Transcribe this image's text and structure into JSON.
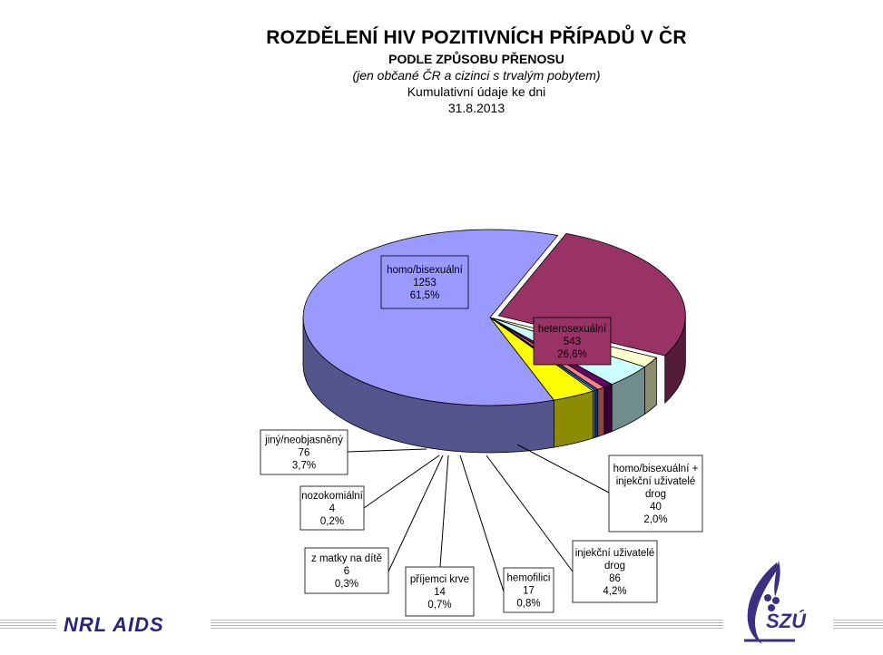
{
  "titles": {
    "main": "ROZDĚLENÍ HIV POZITIVNÍCH PŘÍPADŮ V ČR",
    "sub": "PODLE ZPŮSOBU PŘENOSU",
    "note": "(jen občané ČR a cizinci s trvalým pobytem)",
    "cumulative": "Kumulativní údaje ke dni",
    "date": "31.8.2013"
  },
  "chart_data": {
    "type": "pie",
    "title": "ROZDĚLENÍ HIV POZITIVNÍCH PŘÍPADŮ V ČR",
    "categories": [
      "homo/bisexuální",
      "heterosexuální",
      "homo/bisexuální + injekční uživatelé drog",
      "injekční uživatelé drog",
      "hemofilici",
      "příjemci krve",
      "z matky na dítě",
      "nozokomiální",
      "jiný/neobjasněný"
    ],
    "values": [
      1253,
      543,
      40,
      86,
      17,
      14,
      6,
      4,
      76
    ],
    "percent_labels": [
      "61,5%",
      "26,6%",
      "2,0%",
      "4,2%",
      "0,8%",
      "0,7%",
      "0,3%",
      "0,2%",
      "3,7%"
    ],
    "colors": [
      "#9999ff",
      "#993366",
      "#ffffcc",
      "#ccffff",
      "#660066",
      "#ff8080",
      "#0066cc",
      "#ccccff",
      "#ffff00"
    ],
    "exploded_category": "heterosexuální",
    "grid": false,
    "legend": "none"
  },
  "labels": [
    {
      "lines": [
        "homo/bisexuální",
        "1253",
        "61,5%"
      ]
    },
    {
      "lines": [
        "heterosexuální",
        "543",
        "26,6%"
      ]
    },
    {
      "lines": [
        "homo/bisexuální +",
        "injekční uživatelé",
        "drog",
        "40",
        "2,0%"
      ]
    },
    {
      "lines": [
        "injekční uživatelé",
        "drog",
        "86",
        "4,2%"
      ]
    },
    {
      "lines": [
        "hemofilici",
        "17",
        "0,8%"
      ]
    },
    {
      "lines": [
        "příjemci krve",
        "14",
        "0,7%"
      ]
    },
    {
      "lines": [
        "z matky na dítě",
        "6",
        "0,3%"
      ]
    },
    {
      "lines": [
        "nozokomiální",
        "4",
        "0,2%"
      ]
    },
    {
      "lines": [
        "jiný/neobjasněný",
        "76",
        "3,7%"
      ]
    }
  ],
  "footer": {
    "brand": "NRL AIDS",
    "logo_text": "SZÚ"
  }
}
